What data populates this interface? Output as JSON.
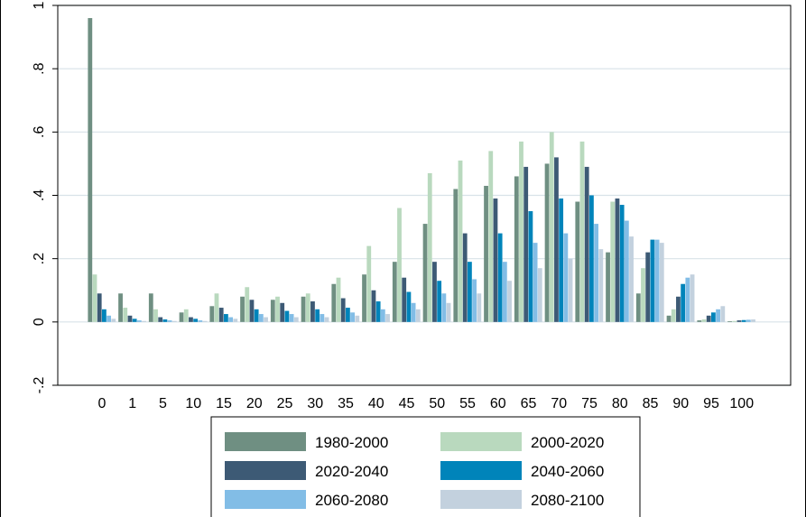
{
  "chart_data": {
    "type": "bar",
    "title": "",
    "xlabel": "",
    "ylabel": "",
    "ylim": [
      -0.2,
      1.0
    ],
    "yticks": [
      -0.2,
      0,
      0.2,
      0.4,
      0.6,
      0.8,
      1.0
    ],
    "ytick_labels": [
      "-.2",
      "0",
      ".2",
      ".4",
      ".6",
      ".8",
      "1"
    ],
    "grid": true,
    "legend_position": "bottom",
    "categories": [
      "0",
      "1",
      "5",
      "10",
      "15",
      "20",
      "25",
      "30",
      "35",
      "40",
      "45",
      "50",
      "55",
      "60",
      "65",
      "70",
      "75",
      "80",
      "85",
      "90",
      "95",
      "100"
    ],
    "series": [
      {
        "name": "1980-2000",
        "color": "#6f8f82",
        "values": [
          0.96,
          0.09,
          0.09,
          0.03,
          0.05,
          0.08,
          0.07,
          0.08,
          0.12,
          0.15,
          0.19,
          0.31,
          0.42,
          0.43,
          0.46,
          0.5,
          0.38,
          0.22,
          0.09,
          0.02,
          0.005,
          0.002
        ]
      },
      {
        "name": "2000-2020",
        "color": "#b9d9be",
        "values": [
          0.15,
          0.045,
          0.04,
          0.04,
          0.09,
          0.11,
          0.08,
          0.09,
          0.14,
          0.24,
          0.36,
          0.47,
          0.51,
          0.54,
          0.57,
          0.6,
          0.57,
          0.38,
          0.17,
          0.04,
          0.008,
          0.003
        ]
      },
      {
        "name": "2020-2040",
        "color": "#3d5a75",
        "values": [
          0.09,
          0.02,
          0.015,
          0.015,
          0.045,
          0.07,
          0.06,
          0.065,
          0.075,
          0.1,
          0.14,
          0.19,
          0.28,
          0.39,
          0.49,
          0.52,
          0.49,
          0.39,
          0.22,
          0.08,
          0.02,
          0.005
        ]
      },
      {
        "name": "2040-2060",
        "color": "#0084ba",
        "values": [
          0.04,
          0.01,
          0.008,
          0.01,
          0.025,
          0.04,
          0.035,
          0.04,
          0.045,
          0.065,
          0.095,
          0.13,
          0.19,
          0.28,
          0.35,
          0.39,
          0.4,
          0.37,
          0.26,
          0.12,
          0.03,
          0.006
        ]
      },
      {
        "name": "2060-2080",
        "color": "#82bde6",
        "values": [
          0.02,
          0.005,
          0.005,
          0.005,
          0.015,
          0.025,
          0.025,
          0.025,
          0.03,
          0.04,
          0.06,
          0.09,
          0.135,
          0.19,
          0.25,
          0.28,
          0.31,
          0.32,
          0.26,
          0.14,
          0.04,
          0.007
        ]
      },
      {
        "name": "2080-2100",
        "color": "#c3d1de",
        "values": [
          0.01,
          0.003,
          0.003,
          0.003,
          0.01,
          0.015,
          0.015,
          0.015,
          0.02,
          0.025,
          0.04,
          0.06,
          0.09,
          0.13,
          0.17,
          0.2,
          0.23,
          0.27,
          0.25,
          0.15,
          0.05,
          0.008
        ]
      }
    ]
  }
}
